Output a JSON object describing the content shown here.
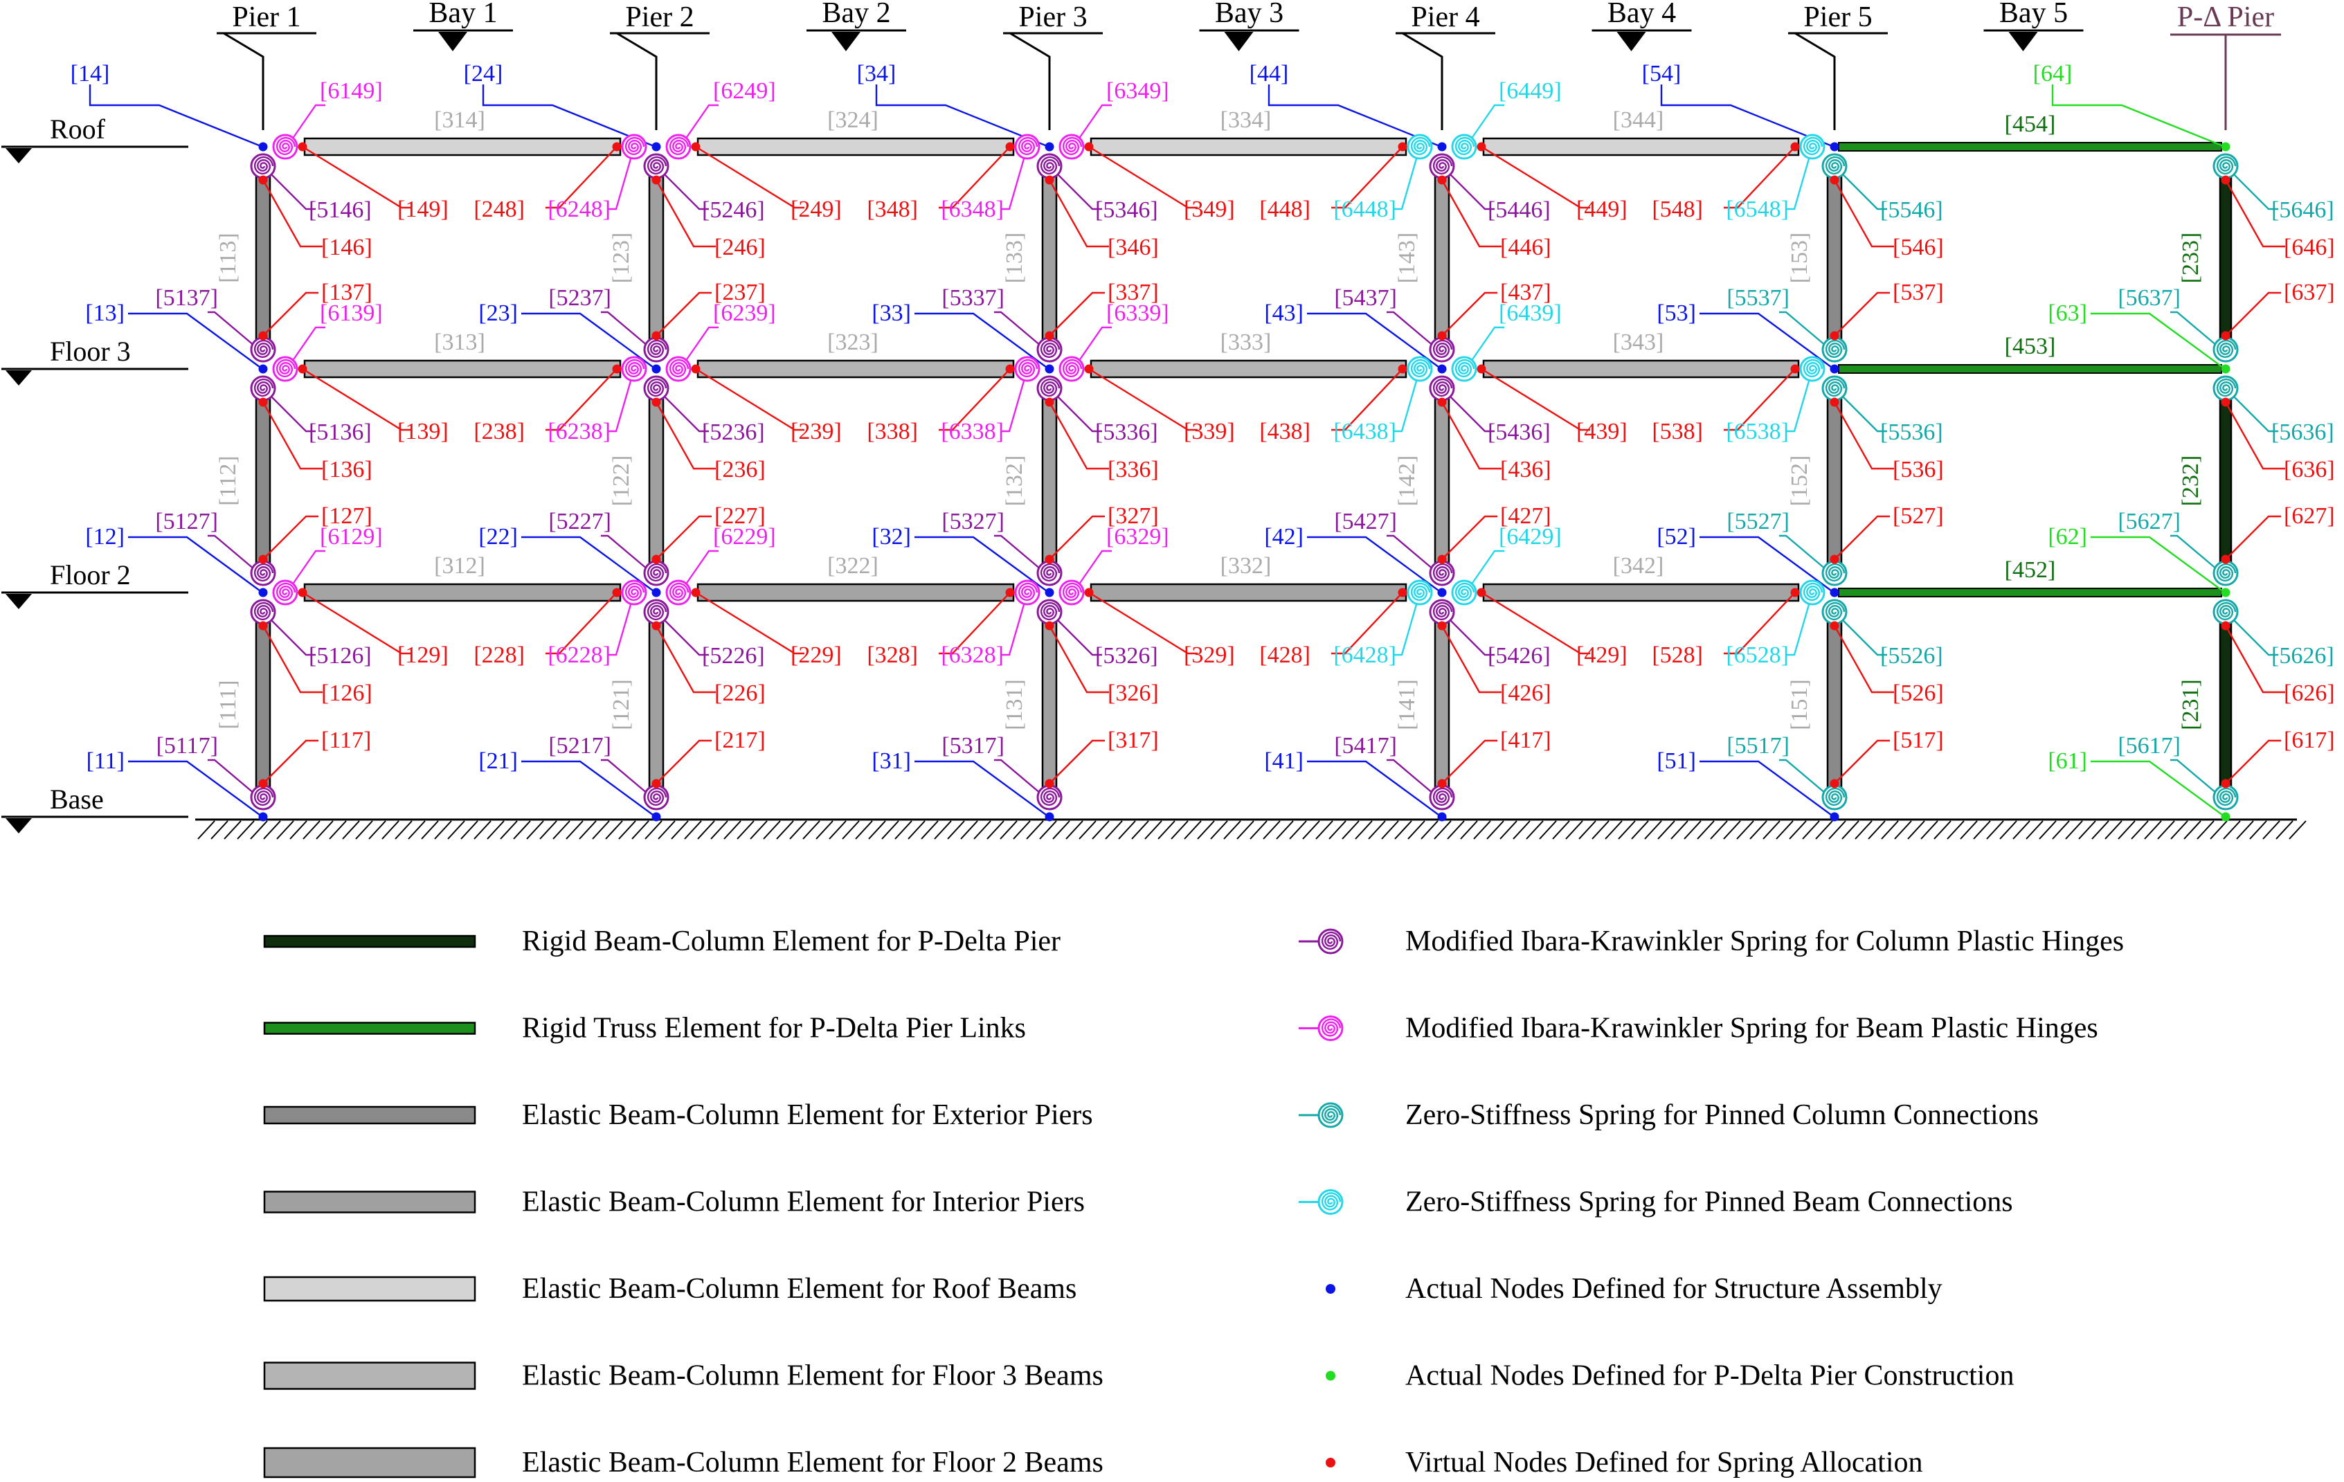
{
  "piers": [
    {
      "label": "Pier 1"
    },
    {
      "label": "Pier 2"
    },
    {
      "label": "Pier 3"
    },
    {
      "label": "Pier 4"
    },
    {
      "label": "Pier 5"
    },
    {
      "label": "P-Δ Pier"
    }
  ],
  "bays": [
    "Bay 1",
    "Bay 2",
    "Bay 3",
    "Bay 4",
    "Bay 5"
  ],
  "levels": [
    "Base",
    "Floor 2",
    "Floor 3",
    "Roof"
  ],
  "column_elements": [
    [
      "[111]",
      "[112]",
      "[113]"
    ],
    [
      "[121]",
      "[122]",
      "[123]"
    ],
    [
      "[131]",
      "[132]",
      "[133]"
    ],
    [
      "[141]",
      "[142]",
      "[143]"
    ],
    [
      "[151]",
      "[152]",
      "[153]"
    ],
    [
      "[231]",
      "[232]",
      "[233]"
    ]
  ],
  "beam_elements": [
    [
      "[312]",
      "[322]",
      "[332]",
      "[342]",
      "[452]"
    ],
    [
      "[313]",
      "[323]",
      "[333]",
      "[343]",
      "[453]"
    ],
    [
      "[314]",
      "[324]",
      "[334]",
      "[344]",
      "[454]"
    ]
  ],
  "base_nodes": [
    {
      "node": "[11]",
      "spring": "[5117]",
      "top": "[117]"
    },
    {
      "node": "[21]",
      "spring": "[5217]",
      "top": "[217]"
    },
    {
      "node": "[31]",
      "spring": "[5317]",
      "top": "[317]"
    },
    {
      "node": "[41]",
      "spring": "[5417]",
      "top": "[417]"
    },
    {
      "node": "[51]",
      "spring": "[5517]",
      "top": "[517]"
    },
    {
      "node": "[61]",
      "spring": "[5617]",
      "top": "[617]"
    }
  ],
  "joints": [
    [
      {
        "node": "[12]",
        "cs_above": "[5127]",
        "cbot": "[127]",
        "bs_right": "[6129]",
        "cs_below": "[5126]",
        "ctop": "[126]",
        "br": "[129]"
      },
      {
        "node": "[22]",
        "cs_above": "[5227]",
        "cbot": "[227]",
        "bs_right": "[6229]",
        "cs_below": "[5226]",
        "ctop": "[226]",
        "br": "[229]",
        "bl": "[228]",
        "bs_left": "[6228]"
      },
      {
        "node": "[32]",
        "cs_above": "[5327]",
        "cbot": "[327]",
        "bs_right": "[6329]",
        "cs_below": "[5326]",
        "ctop": "[326]",
        "br": "[329]",
        "bl": "[328]",
        "bs_left": "[6328]"
      },
      {
        "node": "[42]",
        "cs_above": "[5427]",
        "cbot": "[427]",
        "bs_right": "[6429]",
        "cs_below": "[5426]",
        "ctop": "[426]",
        "br": "[429]",
        "bl": "[428]",
        "bs_left": "[6428]"
      },
      {
        "node": "[52]",
        "cs_above": "[5527]",
        "cbot": "[527]",
        "cs_below": "[5526]",
        "ctop": "[526]",
        "bl": "[528]",
        "bs_left": "[6528]"
      },
      {
        "node": "[62]",
        "cs_above": "[5627]",
        "cbot": "[627]",
        "cs_below": "[5626]",
        "ctop": "[626]"
      }
    ],
    [
      {
        "node": "[13]",
        "cs_above": "[5137]",
        "cbot": "[137]",
        "bs_right": "[6139]",
        "cs_below": "[5136]",
        "ctop": "[136]",
        "br": "[139]"
      },
      {
        "node": "[23]",
        "cs_above": "[5237]",
        "cbot": "[237]",
        "bs_right": "[6239]",
        "cs_below": "[5236]",
        "ctop": "[236]",
        "br": "[239]",
        "bl": "[238]",
        "bs_left": "[6238]"
      },
      {
        "node": "[33]",
        "cs_above": "[5337]",
        "cbot": "[337]",
        "bs_right": "[6339]",
        "cs_below": "[5336]",
        "ctop": "[336]",
        "br": "[339]",
        "bl": "[338]",
        "bs_left": "[6338]"
      },
      {
        "node": "[43]",
        "cs_above": "[5437]",
        "cbot": "[437]",
        "bs_right": "[6439]",
        "cs_below": "[5436]",
        "ctop": "[436]",
        "br": "[439]",
        "bl": "[438]",
        "bs_left": "[6438]"
      },
      {
        "node": "[53]",
        "cs_above": "[5537]",
        "cbot": "[537]",
        "cs_below": "[5536]",
        "ctop": "[536]",
        "bl": "[538]",
        "bs_left": "[6538]"
      },
      {
        "node": "[63]",
        "cs_above": "[5637]",
        "cbot": "[637]",
        "cs_below": "[5636]",
        "ctop": "[636]"
      }
    ],
    [
      {
        "node": "[14]",
        "bs_right": "[6149]",
        "cs_below": "[5146]",
        "ctop": "[146]",
        "br": "[149]"
      },
      {
        "node": "[24]",
        "bs_right": "[6249]",
        "cs_below": "[5246]",
        "ctop": "[246]",
        "br": "[249]",
        "bl": "[248]",
        "bs_left": "[6248]"
      },
      {
        "node": "[34]",
        "bs_right": "[6349]",
        "cs_below": "[5346]",
        "ctop": "[346]",
        "br": "[349]",
        "bl": "[348]",
        "bs_left": "[6348]"
      },
      {
        "node": "[44]",
        "bs_right": "[6449]",
        "cs_below": "[5446]",
        "ctop": "[446]",
        "br": "[449]",
        "bl": "[448]",
        "bs_left": "[6448]"
      },
      {
        "node": "[54]",
        "cs_below": "[5546]",
        "ctop": "[546]",
        "bl": "[548]",
        "bs_left": "[6548]"
      },
      {
        "node": "[64]",
        "cs_below": "[5646]",
        "ctop": "[646]"
      }
    ]
  ],
  "legend_left": [
    "Rigid Beam-Column Element for P-Delta Pier",
    "Rigid Truss Element for P-Delta Pier Links",
    "Elastic Beam-Column Element for Exterior Piers",
    "Elastic Beam-Column Element for Interior Piers",
    "Elastic Beam-Column Element for Roof Beams",
    "Elastic Beam-Column Element for Floor 3 Beams",
    "Elastic Beam-Column Element for Floor 2 Beams"
  ],
  "legend_right": [
    "Modified Ibara-Krawinkler Spring for Column Plastic Hinges",
    "Modified Ibara-Krawinkler Spring for Beam Plastic Hinges",
    "Zero-Stiffness Spring for Pinned Column Connections",
    "Zero-Stiffness Spring for Pinned Beam Connections",
    "Actual Nodes Defined for Structure Assembly",
    "Actual Nodes Defined for P-Delta Pier Construction",
    "Virtual Nodes Defined for Spring Allocation"
  ],
  "colors": {
    "actual_node": "#0a14e6",
    "pdelta_node": "#22dd22",
    "virtual_node": "#ee1111",
    "column_spring": "#8b189b",
    "beam_spring": "#ee22ee",
    "pinned_column_spring": "#14a8a8",
    "pinned_beam_spring": "#22d8e8",
    "element_label": "#aaaaaa",
    "pdelta_pier": "#0e2e0e",
    "pdelta_link": "#1d8f1d",
    "pdelta_label": "#0f6e0f",
    "pdelta_title": "#6a3a55",
    "exterior_pier": "#8a8a8a",
    "interior_pier": "#a0a0a0",
    "roof_beam": "#d4d4d4",
    "floor3_beam": "#b4b4b4",
    "floor2_beam": "#a4a4a4"
  }
}
